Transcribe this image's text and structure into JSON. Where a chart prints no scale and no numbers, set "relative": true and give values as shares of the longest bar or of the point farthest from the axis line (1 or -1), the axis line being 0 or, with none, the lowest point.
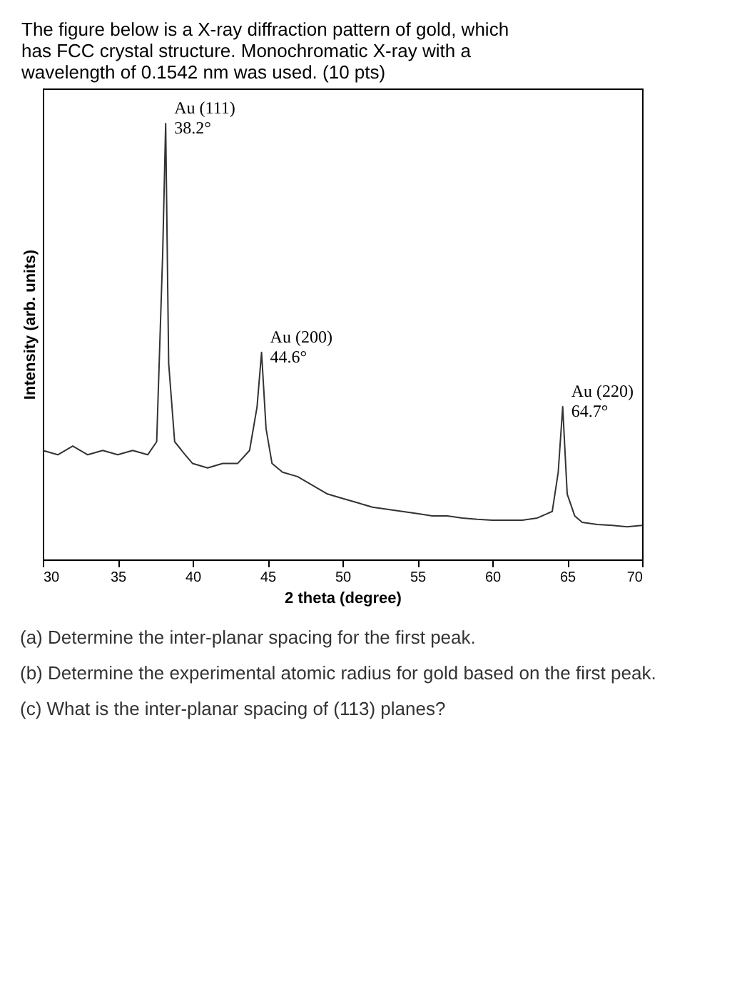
{
  "chart_data": {
    "type": "line",
    "title": "The figure below is a X-ray diffraction pattern of gold, which has FCC crystal structure. Monochromatic X-ray with a wavelength of 0.1542 nm was used. (10 pts)",
    "xlabel": "2 theta (degree)",
    "ylabel": "Intensity (arb. units)",
    "relative": true,
    "xlim": [
      30,
      70
    ],
    "xticks": [
      30,
      35,
      40,
      45,
      50,
      55,
      60,
      65,
      70
    ],
    "grid": false,
    "legend": false,
    "x": [
      30,
      31,
      32,
      33,
      34,
      35,
      36,
      37,
      37.6,
      38.0,
      38.2,
      38.4,
      38.8,
      39.5,
      40,
      41,
      42,
      43,
      43.8,
      44.3,
      44.6,
      44.9,
      45.3,
      46,
      47,
      48,
      49,
      50,
      51,
      52,
      53,
      54,
      55,
      56,
      57,
      58,
      59,
      60,
      61,
      62,
      63,
      64,
      64.4,
      64.7,
      65,
      65.5,
      66,
      67,
      68,
      69,
      70
    ],
    "series": [
      {
        "color": "#333333",
        "values": [
          0.25,
          0.24,
          0.26,
          0.24,
          0.25,
          0.24,
          0.25,
          0.24,
          0.27,
          0.7,
          1,
          0.45,
          0.27,
          0.24,
          0.22,
          0.21,
          0.22,
          0.22,
          0.25,
          0.35,
          0.475,
          0.3,
          0.22,
          0.2,
          0.19,
          0.17,
          0.15,
          0.14,
          0.13,
          0.12,
          0.115,
          0.11,
          0.105,
          0.1,
          0.1,
          0.095,
          0.092,
          0.09,
          0.09,
          0.09,
          0.095,
          0.11,
          0.2,
          0.35,
          0.15,
          0.1,
          0.085,
          0.08,
          0.078,
          0.075,
          0.078
        ]
      }
    ],
    "annotations": [
      {
        "text": "Au (111)\n38.2°",
        "x": 38.2,
        "y": 1
      },
      {
        "text": "Au (200)\n44.6°",
        "x": 44.6,
        "y": 0.475
      },
      {
        "text": "Au (220)\n64.7°",
        "x": 64.7,
        "y": 0.35
      },
      "(a) Determine the inter-planar spacing for the first peak.",
      "(b) Determine the experimental atomic radius for gold based on the first peak.",
      "(c) What is the inter-planar spacing of (113) planes?"
    ]
  }
}
